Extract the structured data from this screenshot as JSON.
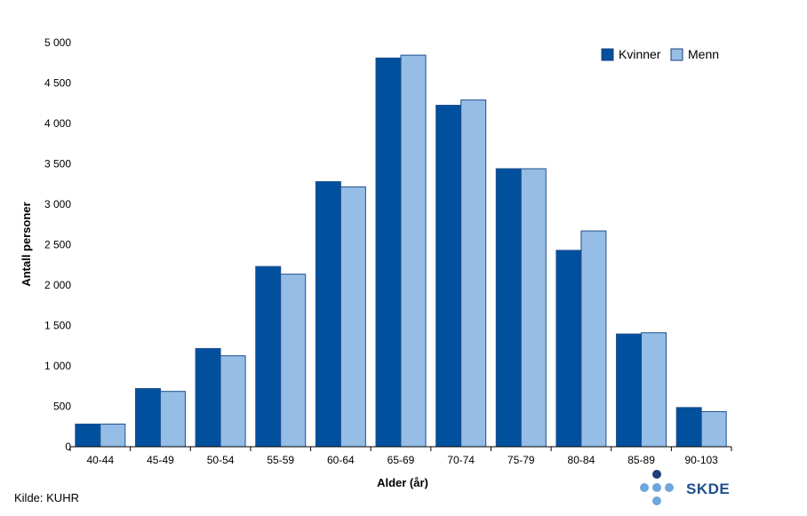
{
  "chart_data": {
    "type": "bar",
    "xlabel": "Alder (år)",
    "ylabel": "Antall personer",
    "ylim": [
      0,
      5000
    ],
    "yticks": [
      0,
      500,
      1000,
      1500,
      2000,
      2500,
      3000,
      3500,
      4000,
      4500,
      5000
    ],
    "ytick_labels": [
      "0",
      "500",
      "1 000",
      "1 500",
      "2 000",
      "2 500",
      "3 000",
      "3 500",
      "4 000",
      "4 500",
      "5 000"
    ],
    "categories": [
      "40-44",
      "45-49",
      "50-54",
      "55-59",
      "60-64",
      "65-69",
      "70-74",
      "75-79",
      "80-84",
      "85-89",
      "90-103"
    ],
    "series": [
      {
        "name": "Kvinner",
        "color": "#00509e",
        "values": [
          280,
          720,
          1215,
          2230,
          3280,
          4810,
          4225,
          3440,
          2430,
          1395,
          485
        ]
      },
      {
        "name": "Menn",
        "color": "#95bde6",
        "values": [
          280,
          685,
          1125,
          2135,
          3215,
          4845,
          4290,
          3440,
          2670,
          1410,
          435
        ]
      }
    ],
    "legend": "top-right",
    "grid": false
  },
  "source": "Kilde: KUHR",
  "logo": {
    "text": "SKDE"
  }
}
